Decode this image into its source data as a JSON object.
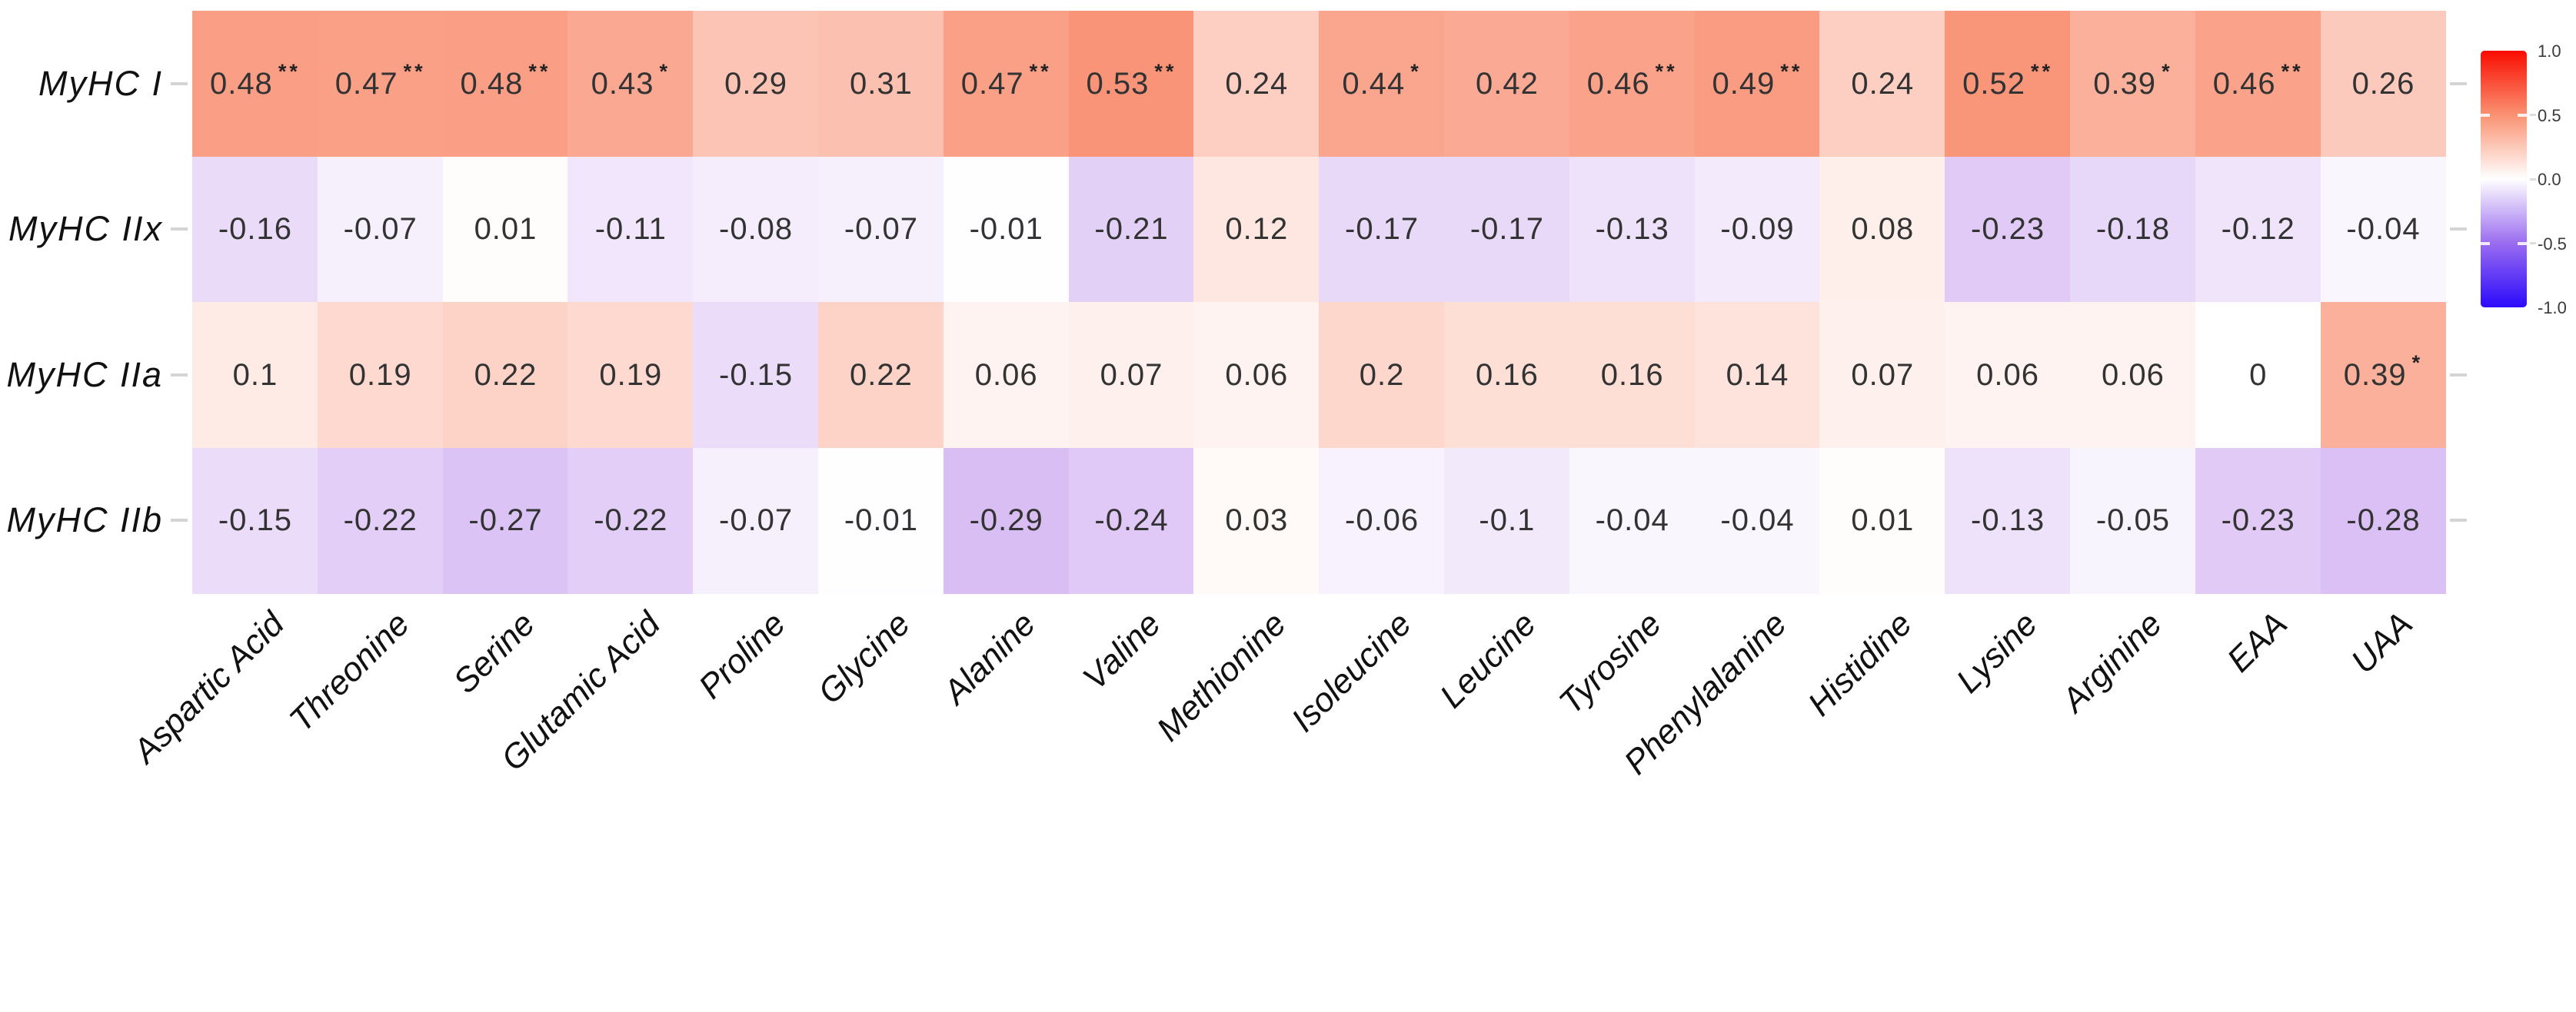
{
  "chart_data": {
    "type": "heatmap",
    "title": "",
    "xlabel": "",
    "ylabel": "",
    "x_categories": [
      "Aspartic Acid",
      "Threonine",
      "Serine",
      "Glutamic Acid",
      "Proline",
      "Glycine",
      "Alanine",
      "Valine",
      "Methionine",
      "Isoleucine",
      "Leucine",
      "Tyrosine",
      "Phenylalanine",
      "Histidine",
      "Lysine",
      "Arginine",
      "EAA",
      "UAA"
    ],
    "y_categories": [
      "MyHC I",
      "MyHC IIx",
      "MyHC IIa",
      "MyHC IIb"
    ],
    "values": [
      [
        0.48,
        0.47,
        0.48,
        0.43,
        0.29,
        0.31,
        0.47,
        0.53,
        0.24,
        0.44,
        0.42,
        0.46,
        0.49,
        0.24,
        0.52,
        0.39,
        0.46,
        0.26
      ],
      [
        -0.16,
        -0.07,
        0.01,
        -0.11,
        -0.08,
        -0.07,
        -0.01,
        -0.21,
        0.12,
        -0.17,
        -0.17,
        -0.13,
        -0.09,
        0.08,
        -0.23,
        -0.18,
        -0.12,
        -0.04
      ],
      [
        0.1,
        0.19,
        0.22,
        0.19,
        -0.15,
        0.22,
        0.06,
        0.07,
        0.06,
        0.2,
        0.16,
        0.16,
        0.14,
        0.07,
        0.06,
        0.06,
        0,
        0.39
      ],
      [
        -0.15,
        -0.22,
        -0.27,
        -0.22,
        -0.07,
        -0.01,
        -0.29,
        -0.24,
        0.03,
        -0.06,
        -0.1,
        -0.04,
        -0.04,
        0.01,
        -0.13,
        -0.05,
        -0.23,
        -0.28
      ]
    ],
    "significance": [
      [
        "**",
        "**",
        "**",
        "*",
        "",
        "",
        "**",
        "**",
        "",
        "*",
        "",
        "**",
        "**",
        "",
        "**",
        "*",
        "**",
        ""
      ],
      [
        "",
        "",
        "",
        "",
        "",
        "",
        "",
        "",
        "",
        "",
        "",
        "",
        "",
        "",
        "",
        "",
        "",
        ""
      ],
      [
        "",
        "",
        "",
        "",
        "",
        "",
        "",
        "",
        "",
        "",
        "",
        "",
        "",
        "",
        "",
        "",
        "",
        "*"
      ],
      [
        "",
        "",
        "",
        "",
        "",
        "",
        "",
        "",
        "",
        "",
        "",
        "",
        "",
        "",
        "",
        "",
        "",
        ""
      ]
    ],
    "value_range": [
      -1,
      1
    ],
    "legend_position": "right",
    "grid": false
  },
  "palette": {
    "positive_end": "#f43500",
    "negative_end": "#7c1fd9",
    "zero": "#ffffff",
    "legend_stops": [
      "#f90c00",
      "#fa9272",
      "#ffffff",
      "#9a6cf0",
      "#2b0afb"
    ]
  },
  "legend": {
    "ticks": [
      "1.0",
      "0.5",
      "0.0",
      "-0.5",
      "-1.0"
    ]
  }
}
